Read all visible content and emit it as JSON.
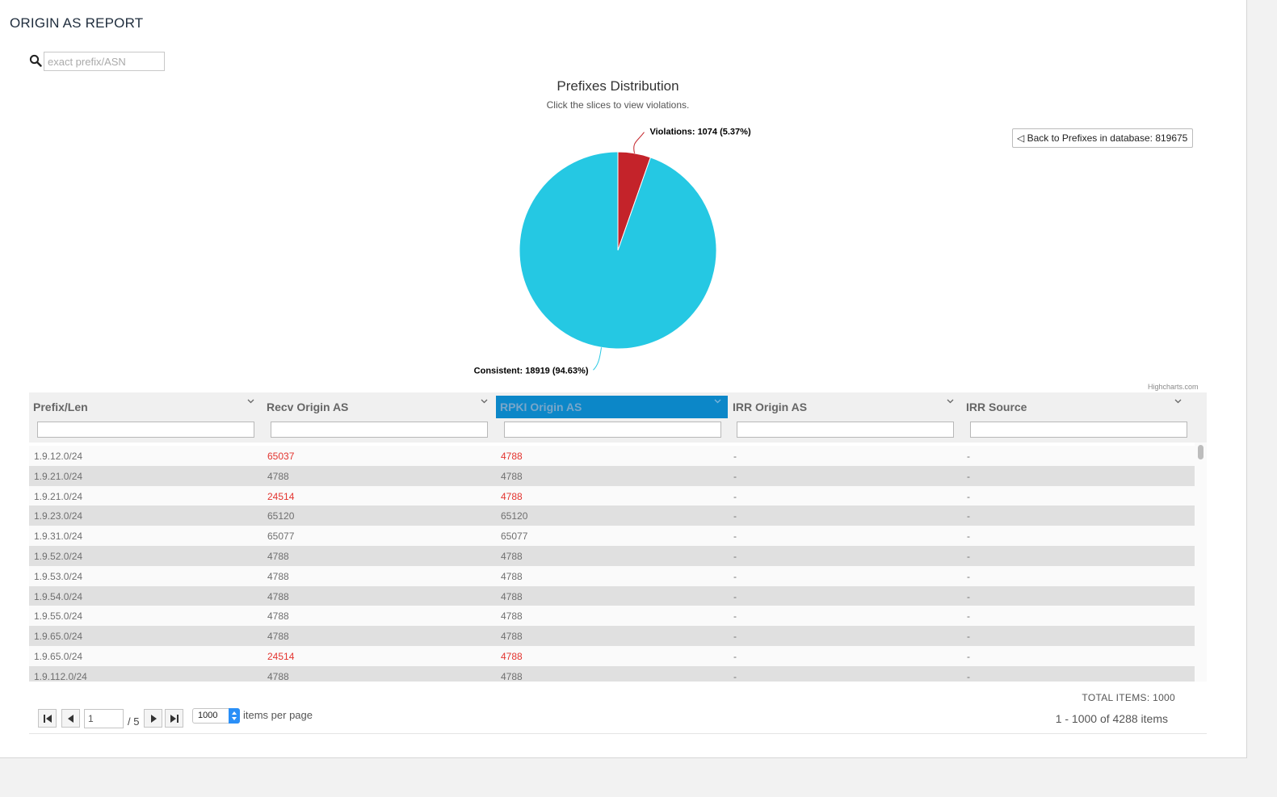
{
  "page": {
    "title": "ORIGIN AS REPORT"
  },
  "search": {
    "placeholder": "exact prefix/ASN",
    "value": ""
  },
  "chart": {
    "title": "Prefixes Distribution",
    "subtitle": "Click the slices to view violations.",
    "back_button_label": "◁ Back to Prefixes in database: 819675",
    "credit": "Highcharts.com",
    "colors": {
      "violations": "#c4232a",
      "consistent": "#25c8e3"
    }
  },
  "chart_data": {
    "type": "pie",
    "title": "Prefixes Distribution",
    "subtitle": "Click the slices to view violations.",
    "slices": [
      {
        "name": "Violations",
        "value": 1074,
        "percent": 5.37,
        "label": "Violations: 1074 (5.37%)"
      },
      {
        "name": "Consistent",
        "value": 18919,
        "percent": 94.63,
        "label": "Consistent: 18919 (94.63%)"
      }
    ]
  },
  "grid": {
    "columns": [
      {
        "label": "Prefix/Len"
      },
      {
        "label": "Recv Origin AS"
      },
      {
        "label": "RPKI Origin AS"
      },
      {
        "label": "IRR Origin AS"
      },
      {
        "label": "IRR Source"
      }
    ],
    "rows": [
      {
        "prefix": "1.9.12.0/24",
        "recv": "65037",
        "rpki": "4788",
        "irr_origin": "-",
        "irr_source": "-",
        "mismatch": true
      },
      {
        "prefix": "1.9.21.0/24",
        "recv": "4788",
        "rpki": "4788",
        "irr_origin": "-",
        "irr_source": "-",
        "mismatch": false
      },
      {
        "prefix": "1.9.21.0/24",
        "recv": "24514",
        "rpki": "4788",
        "irr_origin": "-",
        "irr_source": "-",
        "mismatch": true
      },
      {
        "prefix": "1.9.23.0/24",
        "recv": "65120",
        "rpki": "65120",
        "irr_origin": "-",
        "irr_source": "-",
        "mismatch": false
      },
      {
        "prefix": "1.9.31.0/24",
        "recv": "65077",
        "rpki": "65077",
        "irr_origin": "-",
        "irr_source": "-",
        "mismatch": false
      },
      {
        "prefix": "1.9.52.0/24",
        "recv": "4788",
        "rpki": "4788",
        "irr_origin": "-",
        "irr_source": "-",
        "mismatch": false
      },
      {
        "prefix": "1.9.53.0/24",
        "recv": "4788",
        "rpki": "4788",
        "irr_origin": "-",
        "irr_source": "-",
        "mismatch": false
      },
      {
        "prefix": "1.9.54.0/24",
        "recv": "4788",
        "rpki": "4788",
        "irr_origin": "-",
        "irr_source": "-",
        "mismatch": false
      },
      {
        "prefix": "1.9.55.0/24",
        "recv": "4788",
        "rpki": "4788",
        "irr_origin": "-",
        "irr_source": "-",
        "mismatch": false
      },
      {
        "prefix": "1.9.65.0/24",
        "recv": "4788",
        "rpki": "4788",
        "irr_origin": "-",
        "irr_source": "-",
        "mismatch": false
      },
      {
        "prefix": "1.9.65.0/24",
        "recv": "24514",
        "rpki": "4788",
        "irr_origin": "-",
        "irr_source": "-",
        "mismatch": true
      },
      {
        "prefix": "1.9.112.0/24",
        "recv": "4788",
        "rpki": "4788",
        "irr_origin": "-",
        "irr_source": "-",
        "mismatch": false
      }
    ]
  },
  "pager": {
    "current_page": "1",
    "total_pages_label": "/ 5",
    "page_size": "1000",
    "items_per_page_label": "items per page",
    "total_items_label": "TOTAL ITEMS: 1000",
    "range_label": "1 - 1000 of 4288 items"
  }
}
